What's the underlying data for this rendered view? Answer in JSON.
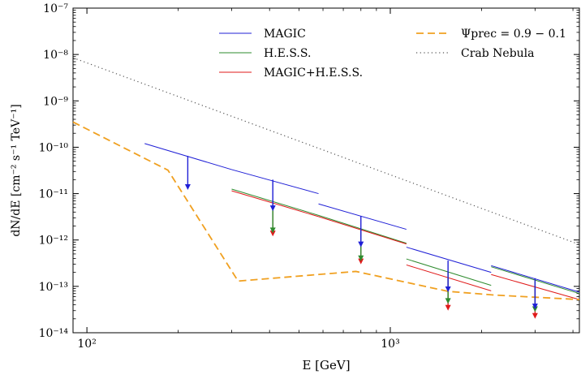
{
  "chart_data": {
    "type": "line",
    "xlabel": "E [GeV]",
    "ylabel": "dN/dE [cm⁻² s⁻¹ TeV⁻¹]",
    "xscale": "log",
    "yscale": "log",
    "xlim": [
      90,
      4200
    ],
    "ylim": [
      1e-14,
      1e-07
    ],
    "x_tick_labels": [
      "10²",
      "10³"
    ],
    "y_tick_labels": [
      "10⁻¹⁴",
      "10⁻¹³",
      "10⁻¹²",
      "10⁻¹¹",
      "10⁻¹⁰",
      "10⁻⁹",
      "10⁻⁸",
      "10⁻⁷"
    ],
    "legend_position": "top",
    "series": [
      {
        "name": "MAGIC",
        "color": "#1f1fd6",
        "style": "solid",
        "segments": [
          {
            "x": [
              155,
              300
            ],
            "y": [
              1.2e-10,
              3.3e-11
            ]
          },
          {
            "x": [
              300,
              580
            ],
            "y": [
              3.3e-11,
              1e-11
            ]
          },
          {
            "x": [
              580,
              1130
            ],
            "y": [
              6e-12,
              1.7e-12
            ]
          },
          {
            "x": [
              1130,
              2150
            ],
            "y": [
              7e-13,
              2e-13
            ]
          },
          {
            "x": [
              2150,
              4200
            ],
            "y": [
              2.8e-13,
              7.5e-14
            ]
          }
        ],
        "upper_limits": [
          {
            "x": 215,
            "y": 6.5e-11,
            "to": 1.2e-11
          },
          {
            "x": 410,
            "y": 2e-11,
            "to": 4.2e-12
          },
          {
            "x": 800,
            "y": 3.3e-12,
            "to": 7e-13
          },
          {
            "x": 1550,
            "y": 3.6e-13,
            "to": 7.5e-14
          },
          {
            "x": 3000,
            "y": 1.5e-13,
            "to": 3.2e-14
          }
        ]
      },
      {
        "name": "H.E.S.S.",
        "color": "#2e8b2e",
        "style": "solid",
        "segments": [
          {
            "x": [
              300,
              580
            ],
            "y": [
              1.25e-11,
              3.4e-12
            ]
          },
          {
            "x": [
              580,
              1130
            ],
            "y": [
              3.4e-12,
              8.5e-13
            ]
          },
          {
            "x": [
              1130,
              2150
            ],
            "y": [
              3.9e-13,
              1.05e-13
            ]
          },
          {
            "x": [
              2150,
              4200
            ],
            "y": [
              2.65e-13,
              7e-14
            ]
          }
        ],
        "upper_limits": [
          {
            "x": 410,
            "y": 6.5e-12,
            "to": 1.4e-12
          },
          {
            "x": 800,
            "y": 1.6e-12,
            "to": 3.5e-13
          },
          {
            "x": 1550,
            "y": 2e-13,
            "to": 4.2e-14
          },
          {
            "x": 3000,
            "y": 1.3e-13,
            "to": 2.8e-14
          }
        ]
      },
      {
        "name": "MAGIC+H.E.S.S.",
        "color": "#e01a1a",
        "style": "solid",
        "segments": [
          {
            "x": [
              300,
              580
            ],
            "y": [
              1.15e-11,
              3.2e-12
            ]
          },
          {
            "x": [
              580,
              1130
            ],
            "y": [
              3.2e-12,
              8.2e-13
            ]
          },
          {
            "x": [
              1130,
              2150
            ],
            "y": [
              2.9e-13,
              8e-14
            ]
          },
          {
            "x": [
              2150,
              4200
            ],
            "y": [
              1.8e-13,
              5.2e-14
            ]
          }
        ],
        "upper_limits": [
          {
            "x": 410,
            "y": 6e-12,
            "to": 1.2e-12
          },
          {
            "x": 800,
            "y": 1.5e-12,
            "to": 3e-13
          },
          {
            "x": 1550,
            "y": 1.5e-13,
            "to": 3e-14
          },
          {
            "x": 3000,
            "y": 1e-13,
            "to": 2e-14
          }
        ]
      },
      {
        "name": "Ψprec = 0.9 − 0.1",
        "color": "#f0a020",
        "style": "dashed",
        "x": [
          90,
          185,
          315,
          770,
          1550,
          2200,
          4200
        ],
        "y": [
          3.5e-10,
          3.2e-11,
          1.3e-13,
          2.1e-13,
          7.8e-14,
          6.5e-14,
          5.2e-14
        ]
      },
      {
        "name": "Crab Nebula",
        "color": "#555555",
        "style": "dotted",
        "x": [
          90,
          4200
        ],
        "y": [
          8.5e-09,
          8e-13
        ]
      }
    ]
  }
}
